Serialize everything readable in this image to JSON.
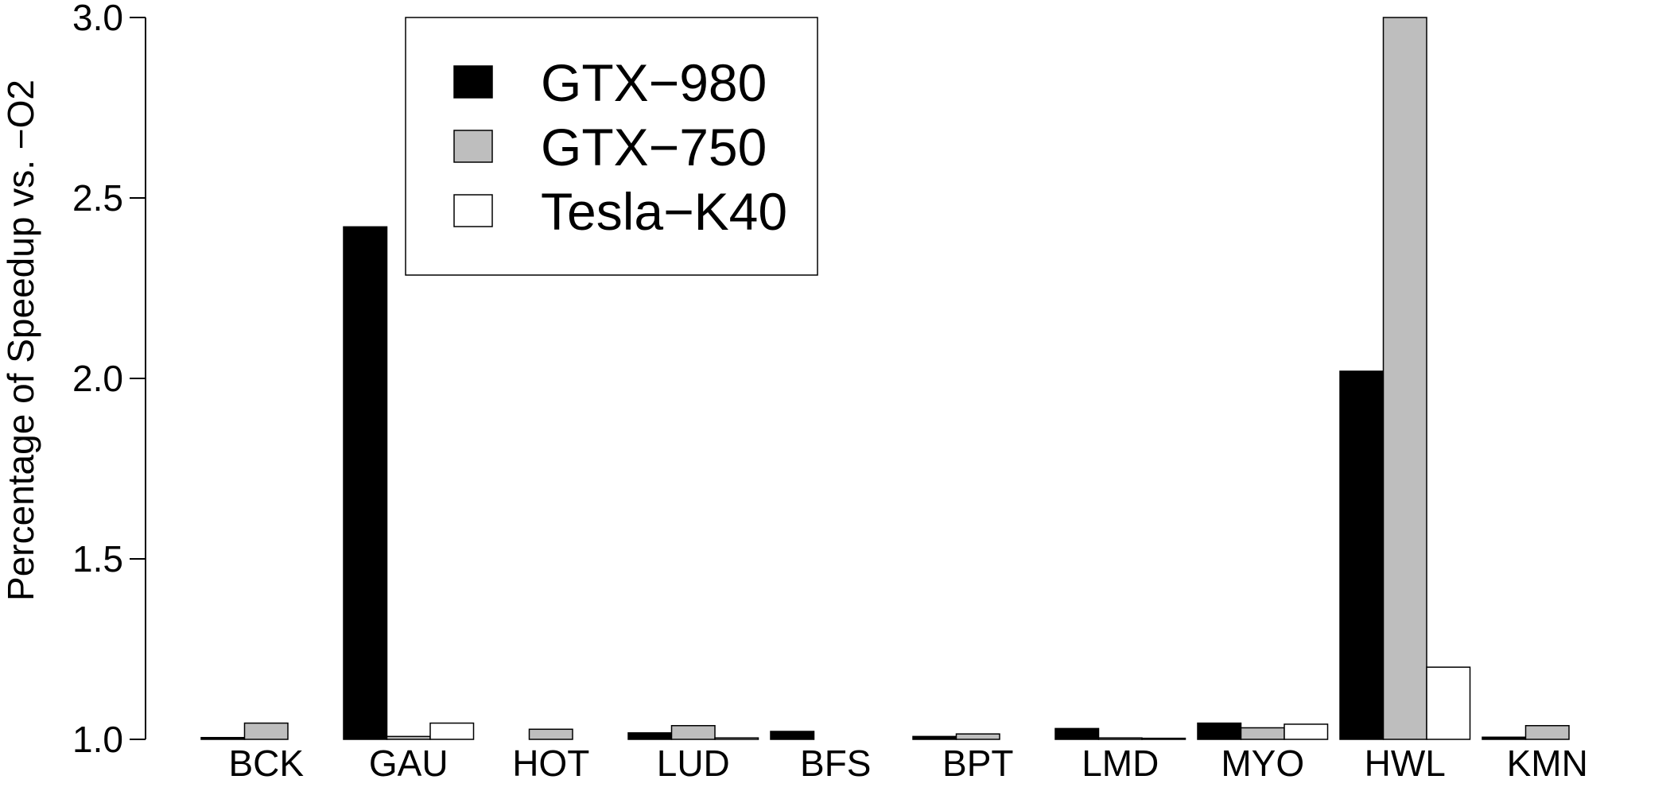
{
  "chart_data": {
    "type": "bar",
    "title": "",
    "xlabel": "",
    "ylabel": "Percentage of Speedup vs. −O2",
    "ylim": [
      1.0,
      3.0
    ],
    "yticks": [
      "1.0",
      "1.5",
      "2.0",
      "2.5",
      "3.0"
    ],
    "categories": [
      "BCK",
      "GAU",
      "HOT",
      "LUD",
      "BFS",
      "BPT",
      "LMD",
      "MYO",
      "HWL",
      "KMN"
    ],
    "series": [
      {
        "name": "GTX−980",
        "color": "#000000",
        "values": [
          1.005,
          2.42,
          1.0,
          1.018,
          1.022,
          1.008,
          1.03,
          1.045,
          2.02,
          1.006
        ]
      },
      {
        "name": "GTX−750",
        "color": "#bebebe",
        "values": [
          1.045,
          1.008,
          1.028,
          1.038,
          1.0,
          1.015,
          1.004,
          1.032,
          3.0,
          1.038
        ]
      },
      {
        "name": "Tesla−K40",
        "color": "#ffffff",
        "values": [
          1.0,
          1.045,
          1.0,
          1.004,
          1.0,
          1.0,
          1.003,
          1.042,
          1.2,
          1.0
        ]
      }
    ],
    "legend_position": "top-left",
    "grid": false
  }
}
